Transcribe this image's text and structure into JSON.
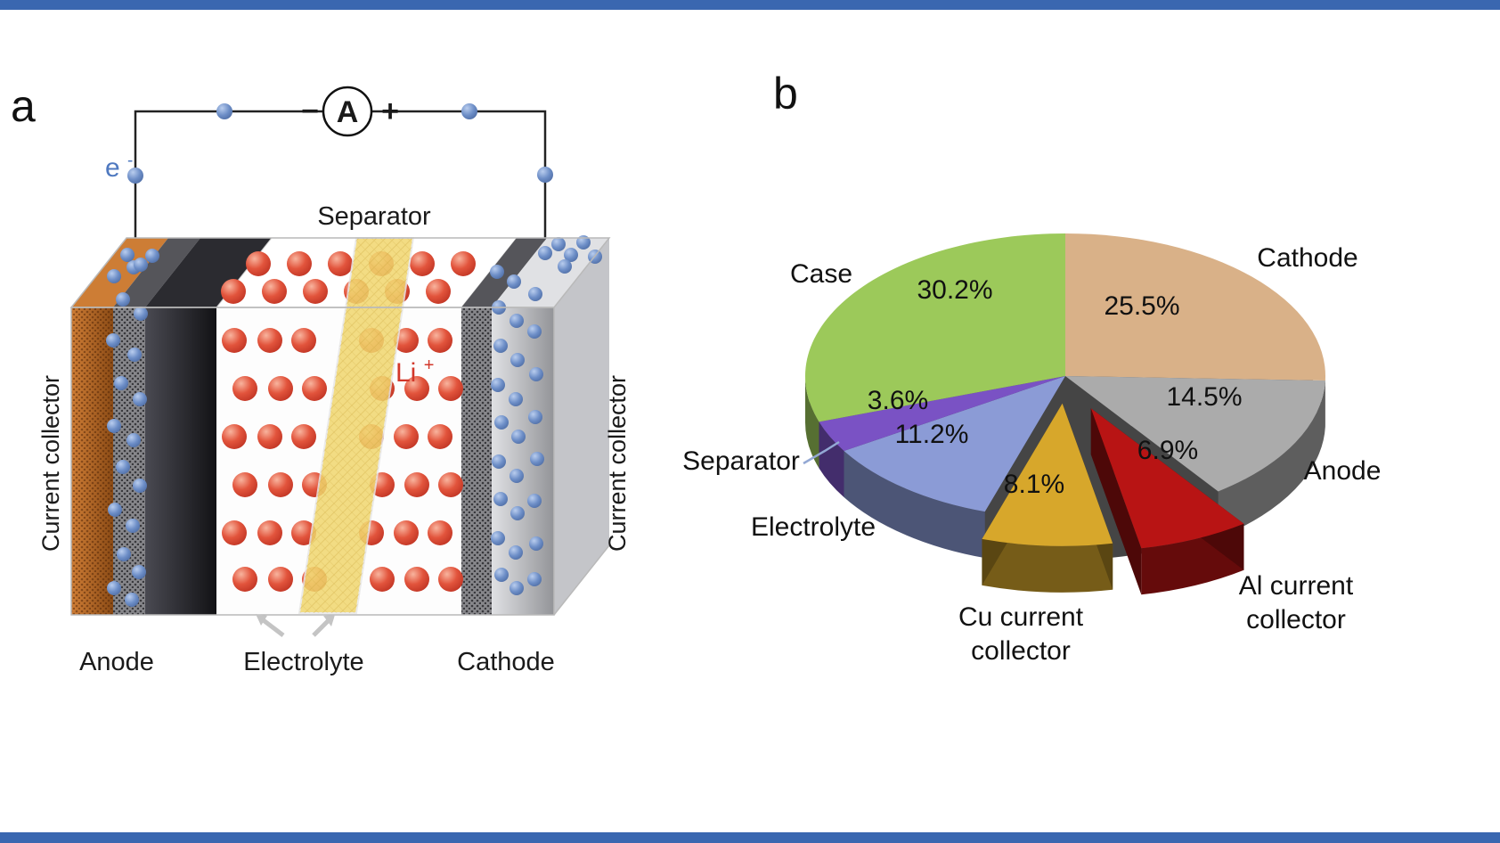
{
  "figure": {
    "panel_a_label": "a",
    "panel_b_label": "b"
  },
  "panel_a": {
    "ammeter_label": "A",
    "minus_sign": "−",
    "plus_sign": "+",
    "electron_base": "e",
    "electron_sup": "-",
    "li_base": "Li",
    "li_sup": "+",
    "separator_label": "Separator",
    "anode_label": "Anode",
    "electrolyte_label": "Electrolyte",
    "cathode_label": "Cathode",
    "left_current_collector_label": "Current collector",
    "right_current_collector_label": "Current collector"
  },
  "chart_data": {
    "type": "pie",
    "style": "3d-exploded",
    "unit": "%",
    "legend_position": "labels-around-slices",
    "slices": [
      {
        "label": "Cathode",
        "value": 25.5,
        "pct_text": "25.5%",
        "color": "#d9b188",
        "exploded": false
      },
      {
        "label": "Anode",
        "value": 14.5,
        "pct_text": "14.5%",
        "color": "#ababab",
        "exploded": false
      },
      {
        "label": "Al current collector",
        "value": 6.9,
        "pct_text": "6.9%",
        "color": "#b81414",
        "exploded": true
      },
      {
        "label": "Cu current collector",
        "value": 8.1,
        "pct_text": "8.1%",
        "color": "#d7a72b",
        "exploded": true
      },
      {
        "label": "Electrolyte",
        "value": 11.2,
        "pct_text": "11.2%",
        "color": "#8b9bd6",
        "exploded": false
      },
      {
        "label": "Separator",
        "value": 3.6,
        "pct_text": "3.6%",
        "color": "#7a52c4",
        "exploded": false
      },
      {
        "label": "Case",
        "value": 30.2,
        "pct_text": "30.2%",
        "color": "#9cc95a",
        "exploded": false
      }
    ]
  },
  "chrome": {
    "top_bar_color": "#3a67b0",
    "bottom_bar_color": "#3a67b0"
  }
}
